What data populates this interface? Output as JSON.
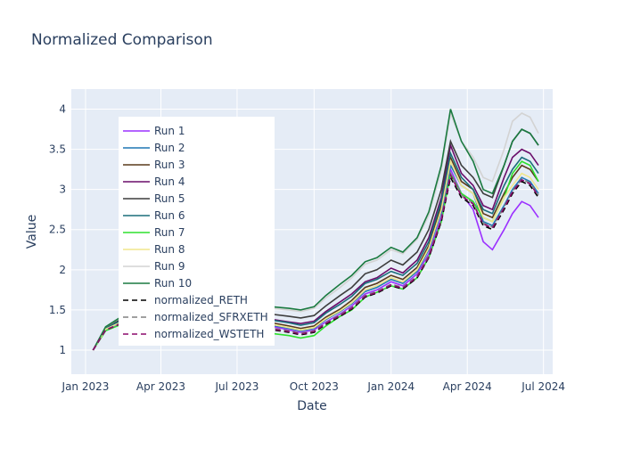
{
  "chart_data": {
    "type": "line",
    "title": "Normalized Comparison",
    "xlabel": "Date",
    "ylabel": "Value",
    "x_ticks": [
      "Jan 2023",
      "Apr 2023",
      "Jul 2023",
      "Oct 2023",
      "Jan 2024",
      "Apr 2024",
      "Jul 2024"
    ],
    "y_ticks": [
      "1",
      "1.5",
      "2",
      "2.5",
      "3",
      "3.5",
      "4"
    ],
    "xlim": [
      "2022-12-15",
      "2024-07-12"
    ],
    "ylim": [
      0.7,
      4.25
    ],
    "grid": true,
    "legend_position": "upper-left, inside plot",
    "x": [
      "2023-01-10",
      "2023-01-25",
      "2023-02-15",
      "2023-03-10",
      "2023-04-05",
      "2023-05-01",
      "2023-06-01",
      "2023-07-01",
      "2023-08-01",
      "2023-09-01",
      "2023-09-15",
      "2023-10-01",
      "2023-10-15",
      "2023-11-01",
      "2023-11-15",
      "2023-12-01",
      "2023-12-15",
      "2024-01-01",
      "2024-01-15",
      "2024-02-01",
      "2024-02-15",
      "2024-03-01",
      "2024-03-12",
      "2024-03-25",
      "2024-04-08",
      "2024-04-20",
      "2024-05-01",
      "2024-05-15",
      "2024-05-25",
      "2024-06-05",
      "2024-06-15",
      "2024-06-25"
    ],
    "series": [
      {
        "name": "Run 1",
        "color": "#9b30ff",
        "dash": "solid",
        "values": [
          1.0,
          1.25,
          1.35,
          1.3,
          1.35,
          1.3,
          1.28,
          1.3,
          1.32,
          1.25,
          1.22,
          1.25,
          1.35,
          1.45,
          1.55,
          1.7,
          1.75,
          1.85,
          1.8,
          1.95,
          2.2,
          2.65,
          3.25,
          2.95,
          2.75,
          2.35,
          2.25,
          2.5,
          2.7,
          2.85,
          2.8,
          2.65
        ]
      },
      {
        "name": "Run 2",
        "color": "#1f77b4",
        "dash": "solid",
        "values": [
          1.0,
          1.26,
          1.36,
          1.31,
          1.36,
          1.31,
          1.29,
          1.31,
          1.33,
          1.27,
          1.24,
          1.27,
          1.38,
          1.48,
          1.58,
          1.73,
          1.78,
          1.88,
          1.83,
          1.98,
          2.25,
          2.72,
          3.3,
          3.05,
          2.95,
          2.6,
          2.55,
          2.8,
          3.0,
          3.15,
          3.1,
          2.95
        ]
      },
      {
        "name": "Run 3",
        "color": "#5a3a1a",
        "dash": "solid",
        "values": [
          1.0,
          1.27,
          1.37,
          1.33,
          1.38,
          1.33,
          1.31,
          1.34,
          1.36,
          1.3,
          1.27,
          1.3,
          1.41,
          1.51,
          1.62,
          1.78,
          1.83,
          1.93,
          1.88,
          2.03,
          2.3,
          2.8,
          3.4,
          3.1,
          3.0,
          2.7,
          2.65,
          2.95,
          3.15,
          3.3,
          3.25,
          3.1
        ]
      },
      {
        "name": "Run 4",
        "color": "#6a0d6a",
        "dash": "solid",
        "values": [
          1.0,
          1.28,
          1.38,
          1.35,
          1.4,
          1.35,
          1.34,
          1.37,
          1.4,
          1.35,
          1.33,
          1.36,
          1.48,
          1.6,
          1.7,
          1.85,
          1.9,
          2.02,
          1.96,
          2.12,
          2.4,
          2.9,
          3.55,
          3.2,
          3.05,
          2.8,
          2.75,
          3.15,
          3.4,
          3.5,
          3.45,
          3.3
        ]
      },
      {
        "name": "Run 5",
        "color": "#3d3d3d",
        "dash": "solid",
        "values": [
          1.0,
          1.28,
          1.4,
          1.37,
          1.43,
          1.39,
          1.38,
          1.42,
          1.46,
          1.42,
          1.4,
          1.43,
          1.55,
          1.68,
          1.78,
          1.95,
          2.0,
          2.12,
          2.06,
          2.22,
          2.5,
          3.0,
          3.6,
          3.3,
          3.15,
          2.95,
          2.9,
          3.3,
          3.6,
          3.75,
          3.7,
          3.55
        ]
      },
      {
        "name": "Run 6",
        "color": "#1a6e7a",
        "dash": "solid",
        "values": [
          1.0,
          1.27,
          1.38,
          1.34,
          1.39,
          1.35,
          1.33,
          1.36,
          1.39,
          1.34,
          1.31,
          1.34,
          1.46,
          1.57,
          1.67,
          1.83,
          1.88,
          1.98,
          1.93,
          2.08,
          2.35,
          2.85,
          3.45,
          3.15,
          3.0,
          2.75,
          2.7,
          3.05,
          3.25,
          3.4,
          3.35,
          3.2
        ]
      },
      {
        "name": "Run 7",
        "color": "#2ee02e",
        "dash": "solid",
        "values": [
          1.0,
          1.24,
          1.33,
          1.27,
          1.3,
          1.24,
          1.21,
          1.22,
          1.22,
          1.18,
          1.15,
          1.18,
          1.3,
          1.42,
          1.5,
          1.66,
          1.72,
          1.8,
          1.76,
          1.9,
          2.15,
          2.6,
          3.2,
          2.95,
          2.85,
          2.65,
          2.6,
          2.9,
          3.2,
          3.35,
          3.3,
          3.1
        ]
      },
      {
        "name": "Run 8",
        "color": "#f0e68c",
        "dash": "solid",
        "values": [
          1.0,
          1.26,
          1.36,
          1.32,
          1.37,
          1.32,
          1.3,
          1.32,
          1.34,
          1.28,
          1.25,
          1.28,
          1.39,
          1.49,
          1.59,
          1.75,
          1.8,
          1.9,
          1.85,
          2.0,
          2.27,
          2.75,
          3.35,
          3.05,
          2.95,
          2.65,
          2.6,
          2.9,
          3.05,
          3.2,
          3.15,
          3.0
        ]
      },
      {
        "name": "Run 9",
        "color": "#d3d3d3",
        "dash": "solid",
        "values": [
          1.0,
          1.29,
          1.42,
          1.4,
          1.47,
          1.43,
          1.43,
          1.48,
          1.53,
          1.5,
          1.48,
          1.52,
          1.65,
          1.78,
          1.9,
          2.07,
          2.12,
          2.25,
          2.2,
          2.38,
          2.68,
          3.25,
          3.95,
          3.6,
          3.4,
          3.15,
          3.1,
          3.5,
          3.85,
          3.95,
          3.9,
          3.7
        ]
      },
      {
        "name": "Run 10",
        "color": "#1a7a40",
        "dash": "solid",
        "values": [
          1.0,
          1.29,
          1.43,
          1.41,
          1.48,
          1.45,
          1.45,
          1.5,
          1.55,
          1.52,
          1.5,
          1.54,
          1.68,
          1.82,
          1.93,
          2.1,
          2.15,
          2.28,
          2.22,
          2.4,
          2.72,
          3.3,
          4.0,
          3.6,
          3.35,
          3.0,
          2.95,
          3.3,
          3.6,
          3.75,
          3.7,
          3.55
        ]
      },
      {
        "name": "normalized_RETH",
        "color": "#000000",
        "dash": "dash",
        "values": [
          1.0,
          1.25,
          1.34,
          1.29,
          1.33,
          1.28,
          1.25,
          1.26,
          1.27,
          1.22,
          1.19,
          1.22,
          1.32,
          1.42,
          1.51,
          1.66,
          1.71,
          1.8,
          1.76,
          1.9,
          2.15,
          2.6,
          3.15,
          2.9,
          2.8,
          2.55,
          2.5,
          2.75,
          2.95,
          3.1,
          3.05,
          2.9
        ]
      },
      {
        "name": "normalized_SFRXETH",
        "color": "#808080",
        "dash": "dash",
        "values": [
          1.0,
          1.25,
          1.35,
          1.3,
          1.34,
          1.29,
          1.26,
          1.28,
          1.29,
          1.24,
          1.21,
          1.24,
          1.34,
          1.44,
          1.53,
          1.68,
          1.73,
          1.82,
          1.78,
          1.92,
          2.18,
          2.63,
          3.2,
          2.93,
          2.83,
          2.58,
          2.53,
          2.78,
          2.98,
          3.13,
          3.08,
          2.93
        ]
      },
      {
        "name": "normalized_WSTETH",
        "color": "#8b0a6b",
        "dash": "dash",
        "values": [
          1.0,
          1.25,
          1.34,
          1.3,
          1.33,
          1.28,
          1.26,
          1.27,
          1.28,
          1.23,
          1.2,
          1.23,
          1.33,
          1.43,
          1.52,
          1.67,
          1.72,
          1.81,
          1.77,
          1.91,
          2.16,
          2.62,
          3.18,
          2.92,
          2.82,
          2.57,
          2.52,
          2.77,
          2.97,
          3.12,
          3.07,
          2.92
        ]
      }
    ]
  }
}
